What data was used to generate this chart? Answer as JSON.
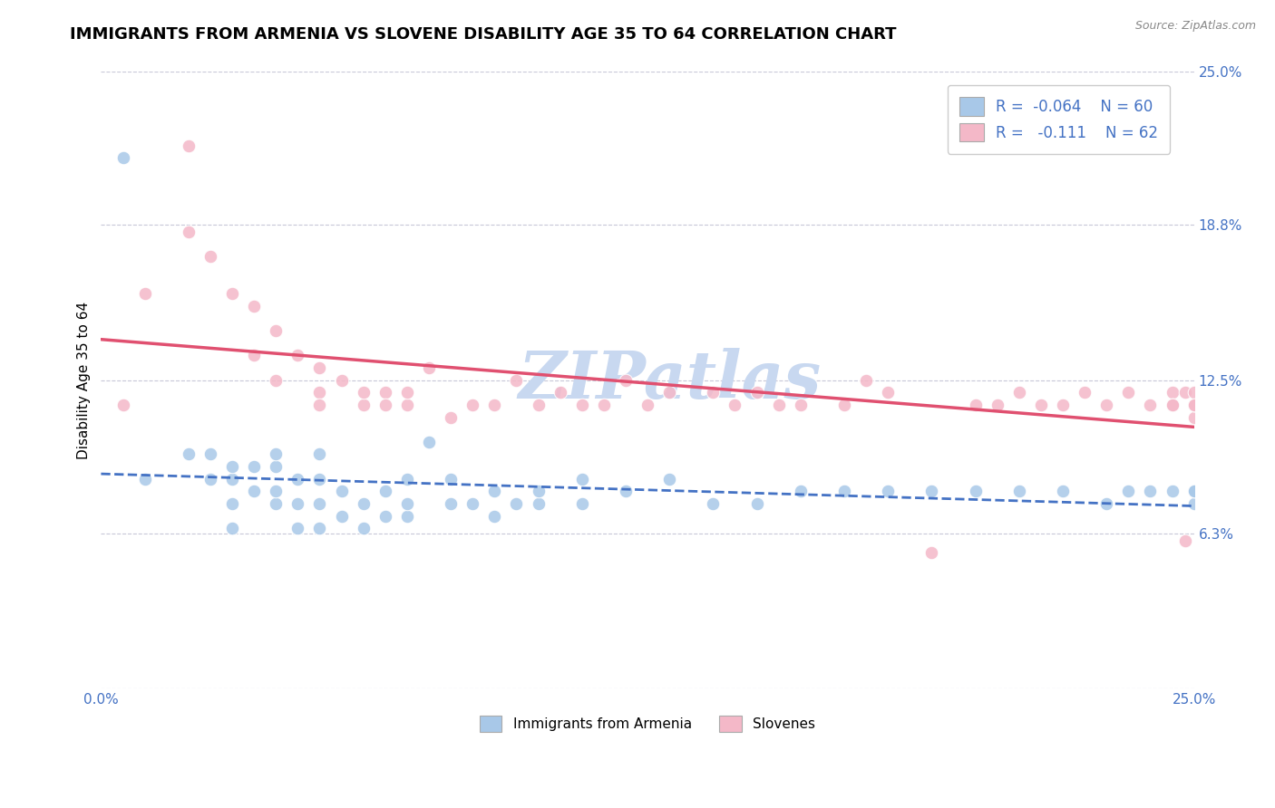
{
  "title": "IMMIGRANTS FROM ARMENIA VS SLOVENE DISABILITY AGE 35 TO 64 CORRELATION CHART",
  "source_text": "Source: ZipAtlas.com",
  "ylabel": "Disability Age 35 to 64",
  "xlim": [
    0.0,
    0.25
  ],
  "ylim": [
    0.0,
    0.25
  ],
  "yticks": [
    0.0,
    0.063,
    0.125,
    0.188,
    0.25
  ],
  "ytick_labels": [
    "",
    "6.3%",
    "12.5%",
    "18.8%",
    "25.0%"
  ],
  "xtick_labels": [
    "0.0%",
    "25.0%"
  ],
  "color_blue": "#a8c8e8",
  "color_pink": "#f4b8c8",
  "color_blue_line": "#4472c4",
  "color_pink_line": "#e05070",
  "watermark_text": "ZIPatlas",
  "watermark_color": "#c8d8f0",
  "title_fontsize": 13,
  "axis_label_fontsize": 11,
  "tick_fontsize": 11,
  "armenia_x": [
    0.005,
    0.01,
    0.02,
    0.025,
    0.025,
    0.03,
    0.03,
    0.03,
    0.03,
    0.035,
    0.035,
    0.04,
    0.04,
    0.04,
    0.04,
    0.045,
    0.045,
    0.045,
    0.05,
    0.05,
    0.05,
    0.05,
    0.055,
    0.055,
    0.06,
    0.06,
    0.065,
    0.065,
    0.07,
    0.07,
    0.07,
    0.075,
    0.08,
    0.08,
    0.085,
    0.09,
    0.09,
    0.095,
    0.1,
    0.1,
    0.11,
    0.11,
    0.12,
    0.13,
    0.14,
    0.15,
    0.16,
    0.17,
    0.18,
    0.19,
    0.2,
    0.21,
    0.22,
    0.23,
    0.235,
    0.24,
    0.245,
    0.25,
    0.25,
    0.25
  ],
  "armenia_y": [
    0.215,
    0.085,
    0.095,
    0.085,
    0.095,
    0.065,
    0.075,
    0.085,
    0.09,
    0.08,
    0.09,
    0.075,
    0.08,
    0.09,
    0.095,
    0.065,
    0.075,
    0.085,
    0.065,
    0.075,
    0.085,
    0.095,
    0.07,
    0.08,
    0.065,
    0.075,
    0.07,
    0.08,
    0.07,
    0.075,
    0.085,
    0.1,
    0.075,
    0.085,
    0.075,
    0.07,
    0.08,
    0.075,
    0.075,
    0.08,
    0.075,
    0.085,
    0.08,
    0.085,
    0.075,
    0.075,
    0.08,
    0.08,
    0.08,
    0.08,
    0.08,
    0.08,
    0.08,
    0.075,
    0.08,
    0.08,
    0.08,
    0.075,
    0.08,
    0.08
  ],
  "slovene_x": [
    0.005,
    0.01,
    0.02,
    0.02,
    0.025,
    0.03,
    0.035,
    0.035,
    0.04,
    0.04,
    0.045,
    0.05,
    0.05,
    0.05,
    0.055,
    0.06,
    0.06,
    0.065,
    0.065,
    0.07,
    0.07,
    0.075,
    0.08,
    0.085,
    0.09,
    0.095,
    0.1,
    0.105,
    0.11,
    0.115,
    0.12,
    0.125,
    0.13,
    0.14,
    0.145,
    0.15,
    0.155,
    0.16,
    0.17,
    0.175,
    0.18,
    0.19,
    0.2,
    0.205,
    0.21,
    0.215,
    0.22,
    0.225,
    0.23,
    0.235,
    0.24,
    0.245,
    0.245,
    0.245,
    0.248,
    0.248,
    0.25,
    0.25,
    0.25,
    0.25,
    0.25,
    0.25
  ],
  "slovene_y": [
    0.115,
    0.16,
    0.22,
    0.185,
    0.175,
    0.16,
    0.155,
    0.135,
    0.145,
    0.125,
    0.135,
    0.13,
    0.12,
    0.115,
    0.125,
    0.115,
    0.12,
    0.12,
    0.115,
    0.115,
    0.12,
    0.13,
    0.11,
    0.115,
    0.115,
    0.125,
    0.115,
    0.12,
    0.115,
    0.115,
    0.125,
    0.115,
    0.12,
    0.12,
    0.115,
    0.12,
    0.115,
    0.115,
    0.115,
    0.125,
    0.12,
    0.055,
    0.115,
    0.115,
    0.12,
    0.115,
    0.115,
    0.12,
    0.115,
    0.12,
    0.115,
    0.12,
    0.115,
    0.115,
    0.12,
    0.06,
    0.115,
    0.11,
    0.115,
    0.115,
    0.12,
    0.115
  ]
}
